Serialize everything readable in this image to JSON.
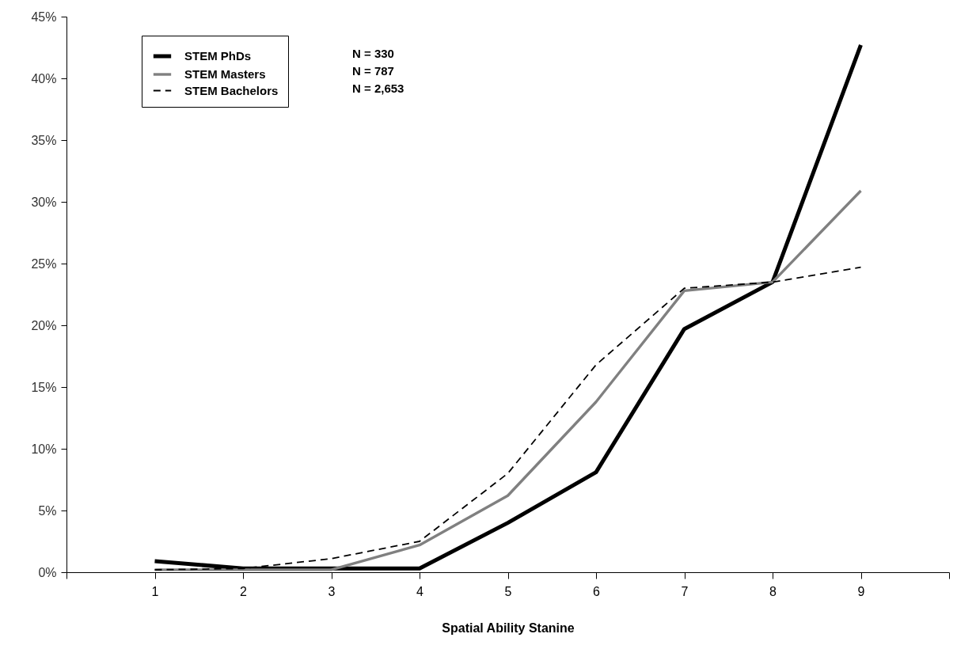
{
  "chart_data": {
    "type": "line",
    "xlabel": "Spatial Ability Stanine",
    "x": [
      1,
      2,
      3,
      4,
      5,
      6,
      7,
      8,
      9
    ],
    "series": [
      {
        "name": "STEM PhDs",
        "color": "#000000",
        "line_style": "solid",
        "values": [
          0.9,
          0.3,
          0.3,
          0.3,
          4.0,
          8.1,
          19.7,
          23.5,
          42.7
        ]
      },
      {
        "name": "STEM Masters",
        "color": "#808080",
        "line_style": "solid",
        "values": [
          0.2,
          0.2,
          0.2,
          2.2,
          6.2,
          13.8,
          22.8,
          23.5,
          30.9
        ]
      },
      {
        "name": "STEM Bachelors",
        "color": "#000000",
        "line_style": "dashed",
        "values": [
          0.2,
          0.3,
          1.1,
          2.5,
          8.0,
          16.8,
          23.0,
          23.5,
          24.7
        ]
      }
    ],
    "annotations": [
      "N = 330",
      "N = 787",
      "N = 2,653"
    ],
    "xlim": [
      0,
      10
    ],
    "xticks": [
      {
        "value": 0,
        "label": null
      },
      1,
      2,
      3,
      4,
      5,
      6,
      7,
      8,
      9,
      {
        "value": 10,
        "label": null
      }
    ],
    "ylim": [
      0,
      45
    ],
    "yticks": [
      {
        "value": 0,
        "label": "0%"
      },
      {
        "value": 5,
        "label": "5%"
      },
      {
        "value": 10,
        "label": "10%"
      },
      {
        "value": 15,
        "label": "15%"
      },
      {
        "value": 20,
        "label": "20%"
      },
      {
        "value": 25,
        "label": "25%"
      },
      {
        "value": 30,
        "label": "30%"
      },
      {
        "value": 35,
        "label": "35%"
      },
      {
        "value": 40,
        "label": "40%"
      },
      {
        "value": 45,
        "label": "45%"
      }
    ],
    "grid": false,
    "legend": "top left",
    "marker": "none"
  }
}
